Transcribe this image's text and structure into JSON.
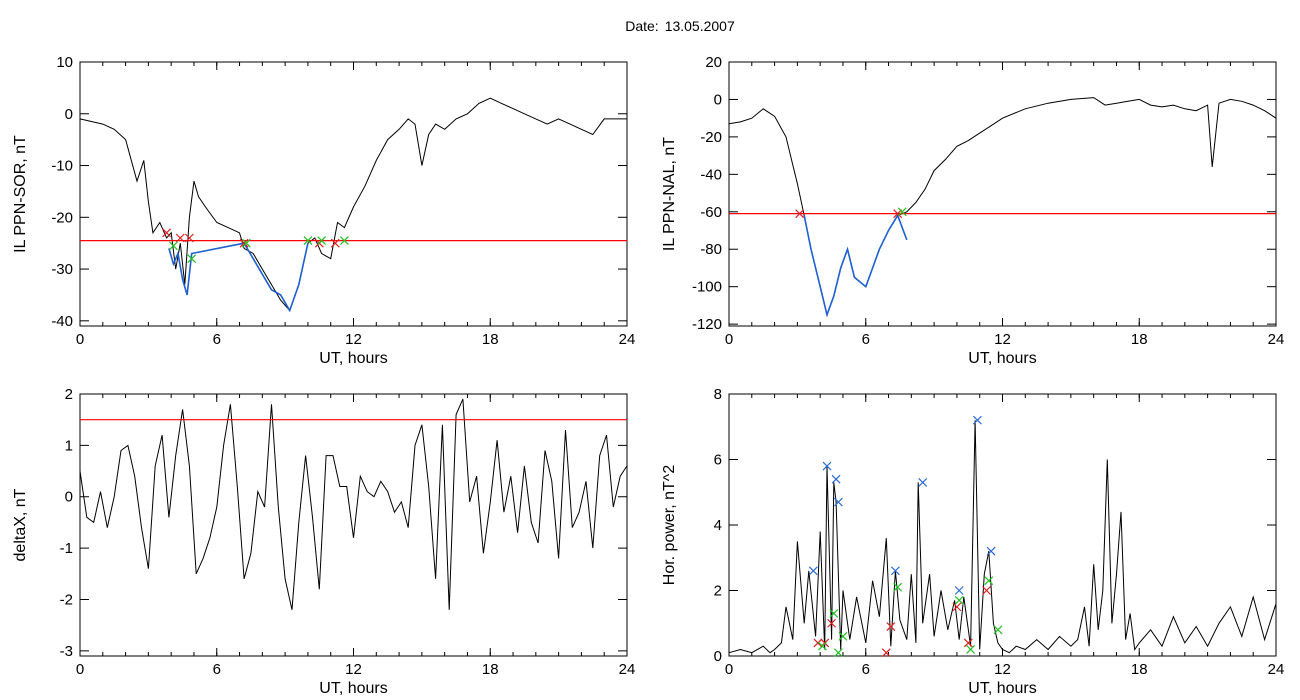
{
  "header": {
    "date_label": "Date:",
    "date_value": "13.05.2007"
  },
  "colors": {
    "trace": "#000000",
    "threshold": "#ff0000",
    "event": "#1f5fd0",
    "marker_red": "#e02020",
    "marker_green": "#20c020",
    "marker_blue": "#2b6bd6"
  },
  "chart_data": [
    {
      "id": "sor",
      "type": "line",
      "ylabel": "IL PPN-SOR, nT",
      "xlabel": "UT, hours",
      "xlim": [
        0,
        24
      ],
      "ylim": [
        -41,
        10
      ],
      "xticks": [
        "0",
        "6",
        "12",
        "18",
        "24"
      ],
      "yticks": [
        "10",
        "0",
        "-10",
        "-20",
        "-30",
        "-40"
      ],
      "threshold": -24.5,
      "series": [
        {
          "role": "trace",
          "x": [
            0,
            0.5,
            1,
            1.5,
            2,
            2.5,
            2.8,
            3,
            3.2,
            3.5,
            3.8,
            4,
            4.2,
            4.4,
            4.6,
            4.8,
            5,
            5.2,
            5.5,
            6,
            6.5,
            7,
            7.2,
            7.6,
            8,
            8.4,
            8.8,
            9.2,
            9.6,
            10,
            10.3,
            10.6,
            11,
            11.3,
            11.6,
            12,
            12.5,
            13,
            13.5,
            14,
            14.4,
            14.7,
            15,
            15.3,
            15.6,
            16,
            16.5,
            17,
            17.5,
            18,
            18.5,
            19,
            19.5,
            20,
            20.5,
            21,
            21.5,
            22,
            22.5,
            23,
            23.5,
            24
          ],
          "y": [
            -1,
            -1.5,
            -2,
            -3,
            -5,
            -13,
            -9,
            -17,
            -23,
            -21,
            -24,
            -23,
            -30,
            -25,
            -33,
            -20,
            -13,
            -16,
            -18,
            -21,
            -22,
            -23,
            -26,
            -27,
            -30,
            -33,
            -36,
            -38,
            -33,
            -25,
            -24,
            -27,
            -28,
            -21,
            -22,
            -18,
            -14,
            -9,
            -5,
            -3,
            -1,
            -2,
            -10,
            -4,
            -2,
            -3,
            -1,
            0,
            2,
            3,
            2,
            1,
            0,
            -1,
            -2,
            -1,
            -2,
            -3,
            -4,
            -1,
            -1,
            -1
          ]
        },
        {
          "role": "event",
          "x": [
            3.9,
            4.1,
            4.3,
            4.5,
            4.7,
            4.9,
            7.2,
            7.6,
            8,
            8.4,
            8.8,
            9.2,
            9.6,
            10
          ],
          "y": [
            -26,
            -29,
            -27,
            -32,
            -35,
            -27,
            -25,
            -28,
            -31,
            -34,
            -35,
            -38,
            -33,
            -25
          ]
        }
      ],
      "markers_red": [
        [
          3.8,
          -23
        ],
        [
          4.4,
          -24
        ],
        [
          4.8,
          -24
        ],
        [
          7.2,
          -25
        ],
        [
          10.5,
          -25
        ],
        [
          11.2,
          -25
        ]
      ],
      "markers_green": [
        [
          4.1,
          -25.5
        ],
        [
          4.9,
          -28
        ],
        [
          7.3,
          -25
        ],
        [
          10,
          -24.5
        ],
        [
          10.6,
          -24.5
        ],
        [
          11.6,
          -24.5
        ]
      ],
      "markers_blue": []
    },
    {
      "id": "nal",
      "type": "line",
      "ylabel": "IL PPN-NAL, nT",
      "xlabel": "UT, hours",
      "xlim": [
        0,
        24
      ],
      "ylim": [
        -121,
        20
      ],
      "xticks": [
        "0",
        "6",
        "12",
        "18",
        "24"
      ],
      "yticks": [
        "20",
        "0",
        "-20",
        "-40",
        "-60",
        "-80",
        "-100",
        "-120"
      ],
      "threshold": -61,
      "series": [
        {
          "role": "trace",
          "x": [
            0,
            0.5,
            1,
            1.5,
            2,
            2.5,
            2.8,
            3,
            3.3,
            3.6,
            4,
            4.3,
            4.6,
            4.9,
            5.2,
            5.5,
            6,
            6.3,
            6.6,
            7,
            7.4,
            7.8,
            8.2,
            8.6,
            9,
            9.5,
            10,
            10.5,
            11,
            11.5,
            12,
            13,
            14,
            15,
            16,
            16.5,
            17,
            17.5,
            18,
            18.5,
            19,
            19.5,
            20,
            20.5,
            21,
            21.2,
            21.5,
            22,
            22.5,
            23,
            23.5,
            24
          ],
          "y": [
            -13,
            -12,
            -10,
            -5,
            -9,
            -20,
            -35,
            -45,
            -62,
            -80,
            -100,
            -115,
            -105,
            -90,
            -80,
            -95,
            -100,
            -90,
            -80,
            -70,
            -62,
            -60,
            -55,
            -48,
            -38,
            -32,
            -25,
            -22,
            -18,
            -14,
            -10,
            -5,
            -2,
            0,
            1,
            -3,
            -2,
            -1,
            0,
            -3,
            -4,
            -3,
            -5,
            -6,
            -3,
            -36,
            -2,
            0,
            -1,
            -3,
            -6,
            -10
          ]
        },
        {
          "role": "event",
          "x": [
            3.3,
            3.6,
            4,
            4.3,
            4.6,
            4.9,
            5.2,
            5.5,
            6,
            6.3,
            6.6,
            7,
            7.4,
            7.8
          ],
          "y": [
            -62,
            -80,
            -100,
            -115,
            -105,
            -90,
            -80,
            -95,
            -100,
            -90,
            -80,
            -70,
            -62,
            -75
          ]
        }
      ],
      "markers_red": [
        [
          3.1,
          -61
        ],
        [
          7.4,
          -61
        ]
      ],
      "markers_green": [
        [
          7.6,
          -60
        ]
      ],
      "markers_blue": []
    },
    {
      "id": "deltax",
      "type": "line",
      "ylabel": "deltaX, nT",
      "xlabel": "UT, hours",
      "xlim": [
        0,
        24
      ],
      "ylim": [
        -3.1,
        2
      ],
      "xticks": [
        "0",
        "6",
        "12",
        "18",
        "24"
      ],
      "yticks": [
        "2",
        "1",
        "0",
        "-1",
        "-2",
        "-3"
      ],
      "threshold": 1.5,
      "series": [
        {
          "role": "trace",
          "x": [
            0,
            0.3,
            0.6,
            0.9,
            1.2,
            1.5,
            1.8,
            2.1,
            2.4,
            2.7,
            3,
            3.3,
            3.6,
            3.9,
            4.2,
            4.5,
            4.8,
            5.1,
            5.4,
            5.7,
            6,
            6.3,
            6.6,
            6.9,
            7.2,
            7.5,
            7.8,
            8.1,
            8.4,
            8.7,
            9,
            9.3,
            9.6,
            9.9,
            10.2,
            10.5,
            10.8,
            11.1,
            11.4,
            11.7,
            12,
            12.3,
            12.6,
            12.9,
            13.2,
            13.5,
            13.8,
            14.1,
            14.4,
            14.7,
            15,
            15.3,
            15.6,
            15.9,
            16.2,
            16.5,
            16.8,
            17.1,
            17.4,
            17.7,
            18,
            18.3,
            18.6,
            18.9,
            19.2,
            19.5,
            19.8,
            20.1,
            20.4,
            20.7,
            21,
            21.3,
            21.6,
            21.9,
            22.2,
            22.5,
            22.8,
            23.1,
            23.4,
            23.7,
            24
          ],
          "y": [
            0.5,
            -0.4,
            -0.5,
            0.1,
            -0.6,
            0,
            0.9,
            1,
            0.4,
            -0.6,
            -1.4,
            0.6,
            1.2,
            -0.4,
            0.8,
            1.7,
            0.6,
            -1.5,
            -1.2,
            -0.8,
            -0.2,
            1,
            1.8,
            0.2,
            -1.6,
            -1.1,
            0.1,
            -0.2,
            1.8,
            -0.2,
            -1.6,
            -2.2,
            -0.5,
            0.8,
            -0.4,
            -1.8,
            0.8,
            0.8,
            0.2,
            0.2,
            -0.8,
            0.4,
            0.1,
            0,
            0.3,
            0.1,
            -0.3,
            -0.1,
            -0.6,
            1,
            1.4,
            0.2,
            -1.6,
            1.4,
            -2.2,
            1.6,
            1.9,
            -0.1,
            0.4,
            -1.1,
            -0.1,
            1.1,
            -0.3,
            0.4,
            -0.7,
            0.6,
            -0.5,
            -0.9,
            0.9,
            0.3,
            -1.2,
            1.3,
            -0.6,
            -0.3,
            0.3,
            -1,
            0.8,
            1.2,
            -0.2,
            0.4,
            0.6
          ]
        }
      ],
      "markers_red": [],
      "markers_green": [],
      "markers_blue": []
    },
    {
      "id": "power",
      "type": "line",
      "ylabel": "Hor. power, nT^2",
      "xlabel": "UT, hours",
      "xlim": [
        0,
        24
      ],
      "ylim": [
        0,
        8
      ],
      "xticks": [
        "0",
        "6",
        "12",
        "18",
        "24"
      ],
      "yticks": [
        "8",
        "6",
        "4",
        "2",
        "0"
      ],
      "threshold": null,
      "series": [
        {
          "role": "trace",
          "x": [
            0,
            0.5,
            1,
            1.5,
            1.8,
            2,
            2.3,
            2.5,
            2.8,
            3,
            3.3,
            3.5,
            3.8,
            4,
            4.2,
            4.3,
            4.5,
            4.6,
            4.7,
            4.9,
            5,
            5.3,
            5.6,
            6,
            6.3,
            6.6,
            6.9,
            7.1,
            7.3,
            7.5,
            7.8,
            8,
            8.2,
            8.3,
            8.5,
            8.8,
            9,
            9.3,
            9.6,
            9.9,
            10.1,
            10.3,
            10.6,
            10.8,
            11,
            11.2,
            11.4,
            11.6,
            11.8,
            12,
            12.3,
            12.6,
            13,
            13.5,
            14,
            14.5,
            15,
            15.3,
            15.6,
            15.8,
            16,
            16.2,
            16.4,
            16.6,
            16.8,
            17,
            17.2,
            17.4,
            17.6,
            17.8,
            18,
            18.5,
            19,
            19.5,
            20,
            20.5,
            21,
            21.5,
            22,
            22.5,
            23,
            23.5,
            24
          ],
          "y": [
            0.1,
            0.2,
            0.1,
            0.3,
            0.1,
            0.2,
            0.4,
            1.5,
            0.5,
            3.5,
            1,
            2.6,
            0.6,
            3.8,
            0.2,
            5.8,
            0.5,
            5.3,
            4.7,
            0.2,
            2,
            0.5,
            1.8,
            0.4,
            2.3,
            1.2,
            3.6,
            0.3,
            2.6,
            1.1,
            0.5,
            2.5,
            0.4,
            5.3,
            1,
            2.5,
            0.6,
            2,
            0.8,
            1.7,
            0.5,
            1.8,
            0.3,
            7.2,
            0.2,
            2.5,
            3.2,
            1,
            0.4,
            0.2,
            0.1,
            0.3,
            0.2,
            0.5,
            0.2,
            0.6,
            0.3,
            0.5,
            1.5,
            0.3,
            2.8,
            0.8,
            2,
            6,
            1,
            2.5,
            4.4,
            0.5,
            1.3,
            0.2,
            0.4,
            0.8,
            0.3,
            1.2,
            0.4,
            0.9,
            0.3,
            1,
            1.5,
            0.6,
            1.8,
            0.5,
            1.6
          ]
        }
      ],
      "markers_red": [
        [
          3.9,
          0.4
        ],
        [
          4.2,
          0.4
        ],
        [
          4.5,
          1
        ],
        [
          6.9,
          0.1
        ],
        [
          7.1,
          0.9
        ],
        [
          10,
          1.5
        ],
        [
          10.5,
          0.4
        ],
        [
          11.3,
          2
        ]
      ],
      "markers_green": [
        [
          4.1,
          0.3
        ],
        [
          4.6,
          1.3
        ],
        [
          4.8,
          0.1
        ],
        [
          5,
          0.6
        ],
        [
          7.4,
          2.1
        ],
        [
          10.1,
          1.7
        ],
        [
          10.6,
          0.2
        ],
        [
          11.4,
          2.3
        ],
        [
          11.8,
          0.8
        ]
      ],
      "markers_blue": [
        [
          3.7,
          2.6
        ],
        [
          4.3,
          5.8
        ],
        [
          4.7,
          5.4
        ],
        [
          4.8,
          4.7
        ],
        [
          7.3,
          2.6
        ],
        [
          8.5,
          5.3
        ],
        [
          10.1,
          2
        ],
        [
          10.9,
          7.2
        ],
        [
          11.5,
          3.2
        ]
      ]
    }
  ]
}
